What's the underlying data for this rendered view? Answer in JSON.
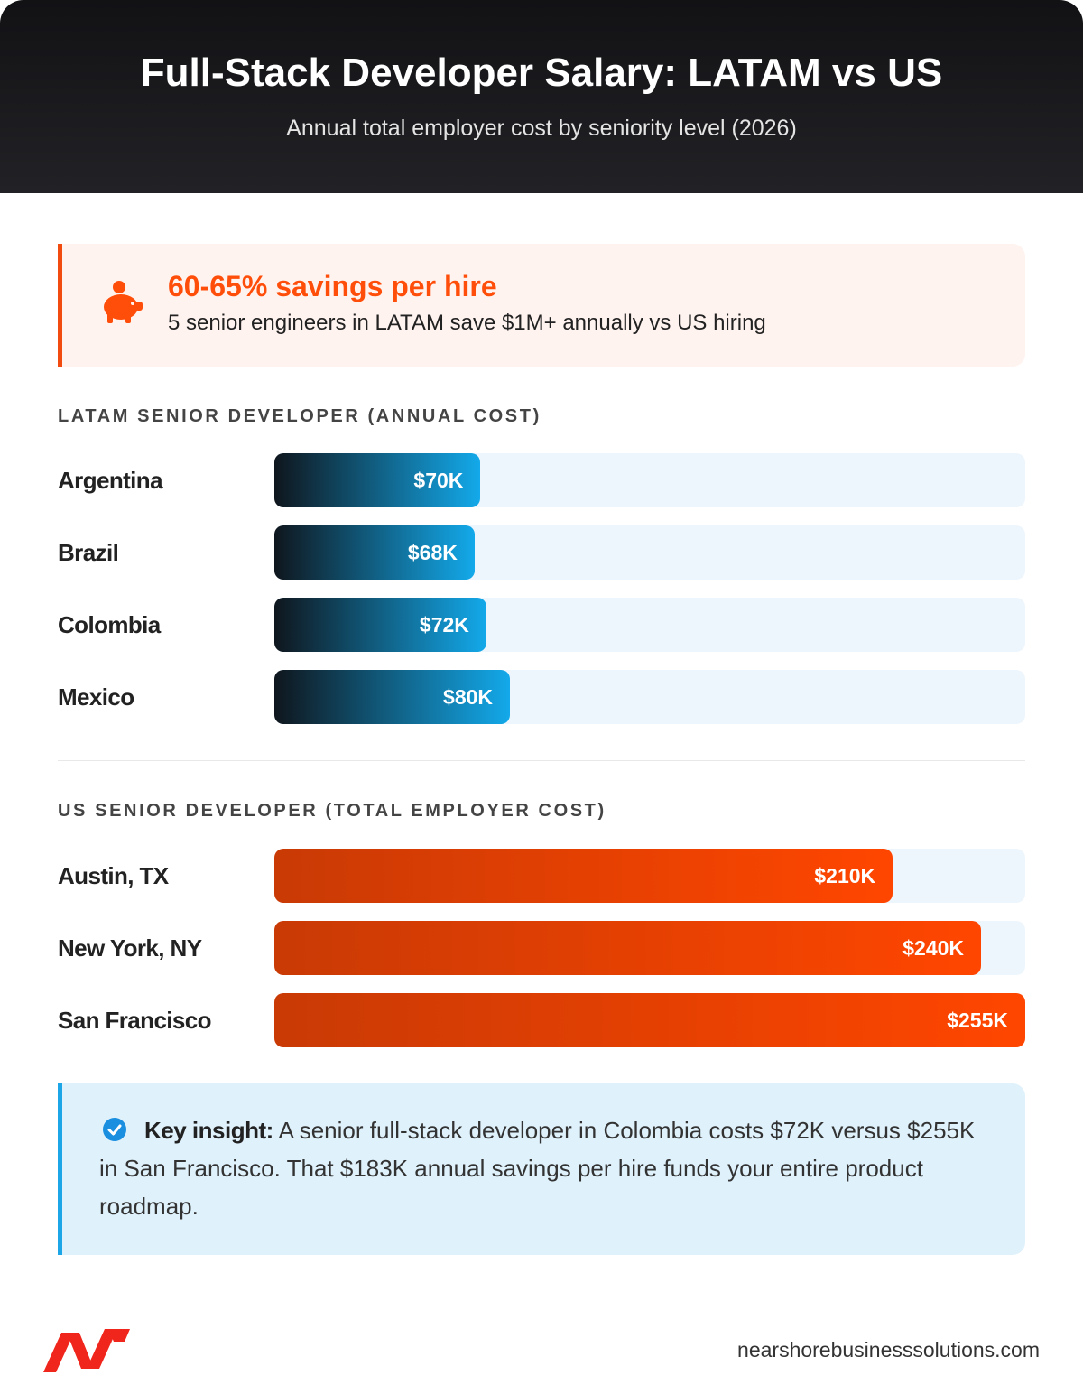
{
  "header": {
    "title": "Full-Stack Developer Salary: LATAM vs US",
    "subtitle": "Annual total employer cost by seniority level (2026)"
  },
  "savings": {
    "headline": "60-65% savings per hire",
    "text": "5 senior engineers in LATAM save $1M+ annually vs US hiring"
  },
  "chart_data": [
    {
      "type": "bar",
      "orientation": "horizontal",
      "title": "LATAM SENIOR DEVELOPER (ANNUAL COST)",
      "categories": [
        "Argentina",
        "Brazil",
        "Colombia",
        "Mexico"
      ],
      "values": [
        70,
        68,
        72,
        80
      ],
      "value_labels": [
        "$70K",
        "$68K",
        "$72K",
        "$80K"
      ],
      "gradient": [
        "#0f161d",
        "#13a9ea"
      ],
      "xlim": [
        0,
        255
      ]
    },
    {
      "type": "bar",
      "orientation": "horizontal",
      "title": "US SENIOR DEVELOPER (TOTAL EMPLOYER COST)",
      "categories": [
        "Austin, TX",
        "New York, NY",
        "San Francisco"
      ],
      "values": [
        210,
        240,
        255
      ],
      "value_labels": [
        "$210K",
        "$240K",
        "$255K"
      ],
      "gradient": [
        "#c93a05",
        "#ff4600"
      ],
      "xlim": [
        0,
        255
      ]
    }
  ],
  "insight": {
    "label": "Key insight:",
    "text": "A senior full-stack developer in Colombia costs $72K versus $255K in San Francisco. That $183K annual savings per hire funds your entire product roadmap."
  },
  "footer": {
    "url": "nearshorebusinesssolutions.com"
  }
}
